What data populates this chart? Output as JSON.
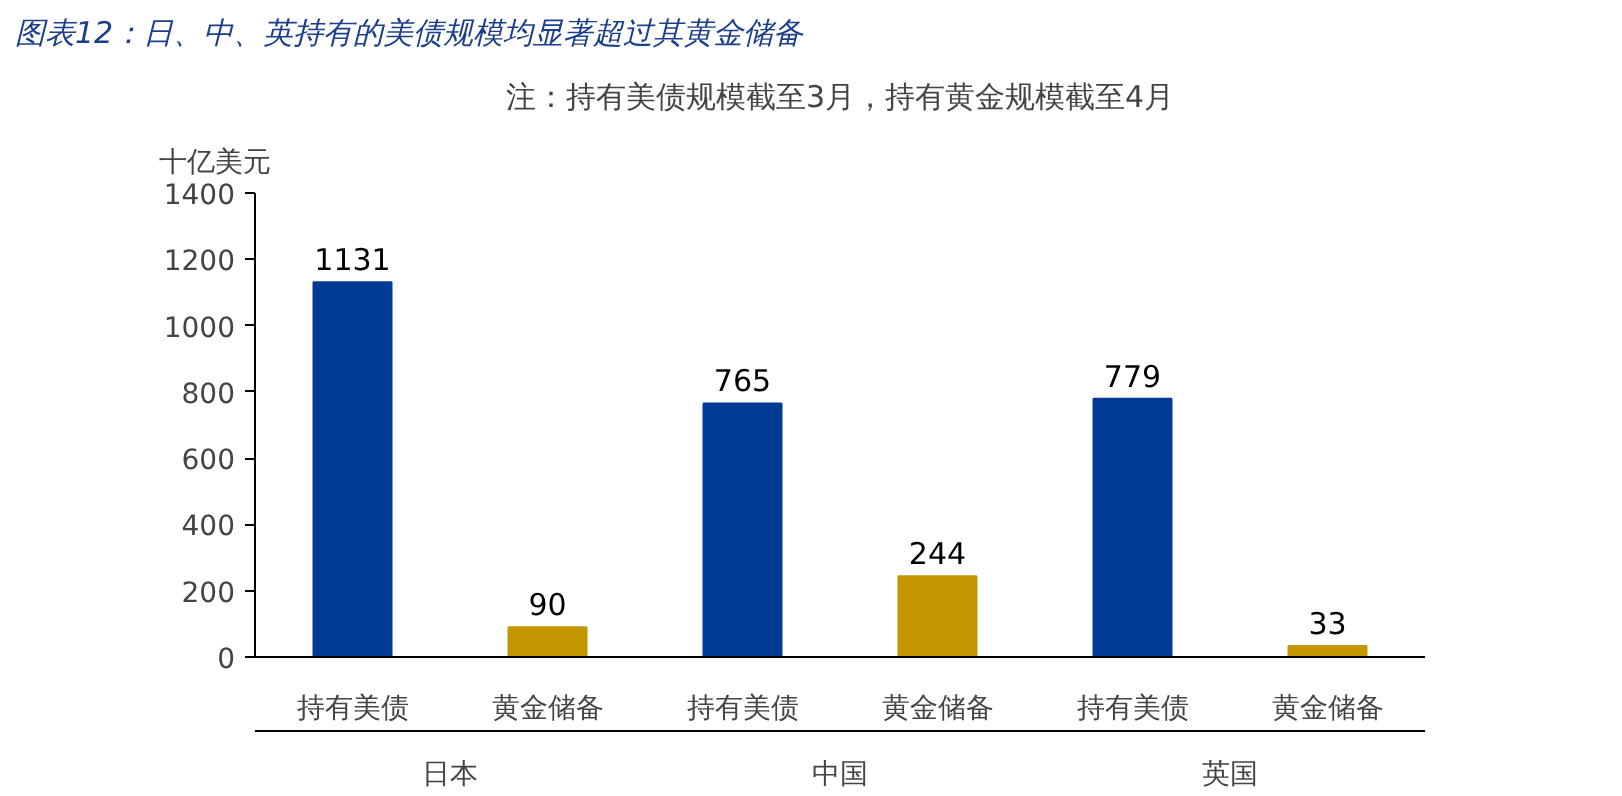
{
  "chart_data": {
    "type": "bar",
    "title": "图表12：日、中、英持有的美债规模均显著超过其黄金储备",
    "ylabel": "十亿美元",
    "categories": [
      "持有美债",
      "黄金储备",
      "持有美债",
      "黄金储备",
      "持有美债",
      "黄金储备"
    ],
    "values": [
      1131,
      90,
      765,
      244,
      779,
      33
    ],
    "colors": [
      "#003b95",
      "#c39700",
      "#003b95",
      "#c39700",
      "#003b95",
      "#c39700"
    ],
    "annotations": [
      "注：持有美债规模截至3月，持有黄金规模截至4月",
      "日本",
      "中国",
      "英国"
    ],
    "ylim": [
      0,
      1400
    ],
    "yticks": [
      0,
      200,
      400,
      600,
      800,
      1000,
      1200,
      1400
    ],
    "data_labels": true,
    "grid": false
  }
}
